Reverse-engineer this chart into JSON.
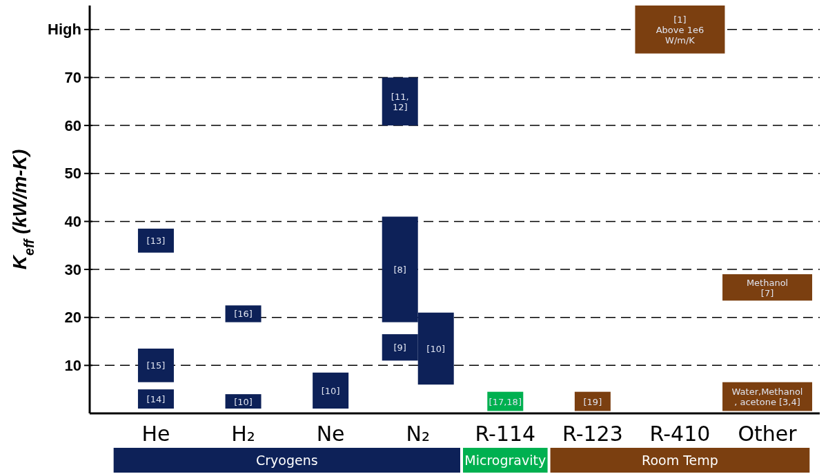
{
  "chart_data": {
    "type": "bar",
    "ylabel": "K$_{eff}$ (kW/m-K)",
    "categories": [
      "He",
      "H₂",
      "Ne",
      "N₂",
      "R-114",
      "R-123",
      "R-410",
      "Other"
    ],
    "ylim": [
      0,
      85
    ],
    "yticks": [
      10,
      20,
      30,
      40,
      50,
      60,
      70,
      {
        "value": 80,
        "label": "High"
      }
    ],
    "grid": "y",
    "line_style": "dashed",
    "legend": "bottom",
    "series": [
      {
        "name": "Cryogens",
        "color": "#0d2158",
        "base": [
          1,
          1,
          1,
          11,
          null,
          null,
          null,
          null
        ],
        "values": [
          4,
          3,
          7.5,
          5.5,
          null,
          null,
          null,
          null
        ]
      },
      {
        "color": "#0d2158",
        "base": [
          6.5,
          19,
          null,
          19,
          null,
          null,
          null,
          null
        ],
        "values": [
          7,
          3.5,
          null,
          22,
          null,
          null,
          null,
          null
        ]
      },
      {
        "color": "#0d2158",
        "base": [
          33.5,
          null,
          null,
          60,
          null,
          null,
          null,
          null
        ],
        "values": [
          5,
          null,
          null,
          10,
          null,
          null,
          null,
          null
        ]
      },
      {
        "color": "#0d2158",
        "base": [
          null,
          null,
          null,
          6,
          null,
          null,
          null,
          null
        ],
        "values": [
          null,
          null,
          null,
          15,
          null,
          null,
          null,
          null
        ]
      },
      {
        "name": "Microgravity",
        "color": "#00b050",
        "base": [
          null,
          null,
          null,
          null,
          0.5,
          null,
          null,
          null
        ],
        "values": [
          null,
          null,
          null,
          null,
          4,
          null,
          null,
          null
        ]
      },
      {
        "name": "Room Temp",
        "color": "#7b3f10",
        "base": [
          null,
          null,
          null,
          null,
          null,
          0.5,
          75,
          0.5
        ],
        "values": [
          null,
          null,
          null,
          null,
          null,
          4,
          10,
          6
        ]
      },
      {
        "color": "#7b3f10",
        "base": [
          null,
          null,
          null,
          null,
          null,
          null,
          null,
          23.5
        ],
        "values": [
          null,
          null,
          null,
          null,
          null,
          null,
          null,
          5.5
        ]
      }
    ],
    "annotations": [
      {
        "text": "[14]",
        "x": "He",
        "y": 5
      },
      {
        "text": "[15]",
        "x": "He",
        "y": 13.5
      },
      {
        "text": "[13]",
        "x": "He",
        "y": 38.5
      },
      {
        "text": "[10]",
        "x": "H₂",
        "y": 4
      },
      {
        "text": "[16]",
        "x": "H₂",
        "y": 22.5
      },
      {
        "text": "[10]",
        "x": "Ne",
        "y": 8.5
      },
      {
        "text": "[9]",
        "x": "N₂",
        "y": 16.5
      },
      {
        "text": "[8]",
        "x": "N₂",
        "y": 30
      },
      {
        "text": "[11,\n12]",
        "x": "N₂",
        "y": 70
      },
      {
        "text": "[10]",
        "x": "N₂",
        "y": 8
      },
      {
        "text": "[17,18]",
        "x": "R-114",
        "y": 4.5
      },
      {
        "text": "[19]",
        "x": "R-123",
        "y": 4.5
      },
      {
        "text": "[1]\nAbove 1e6\nW/m/K",
        "x": "R-410",
        "y": 85
      },
      {
        "text": "Water,Methanol\n, acetone [3,4]",
        "x": "Other",
        "y": 6.5
      },
      {
        "text": "Methanol\n[7]",
        "x": "Other",
        "y": 29
      }
    ]
  }
}
